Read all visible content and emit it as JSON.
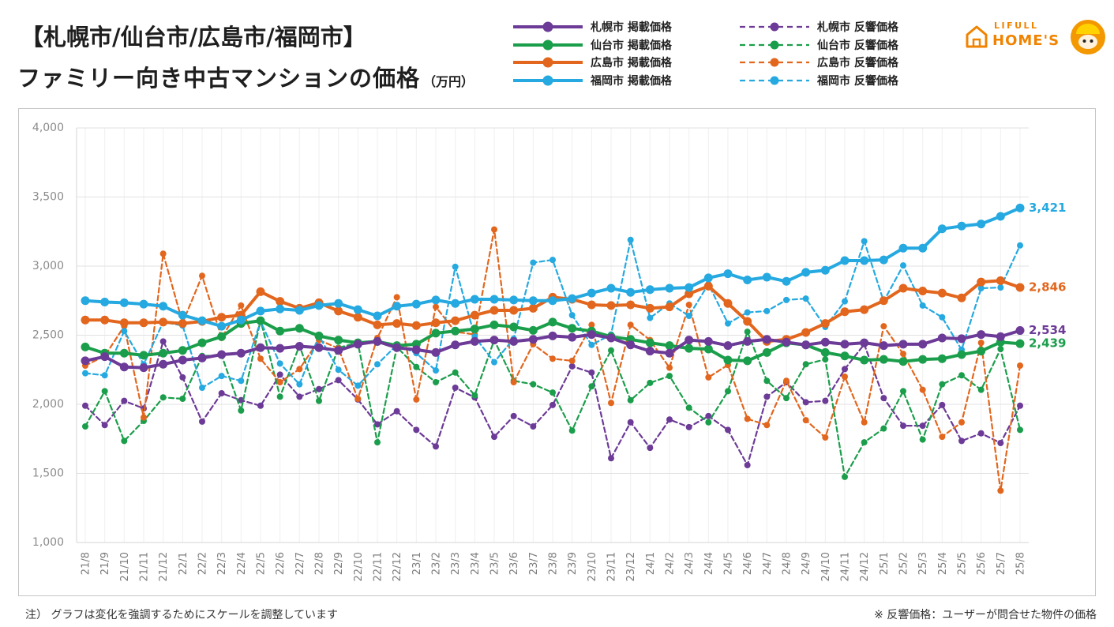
{
  "logo": {
    "line1": "LIFULL",
    "line2": "HOME'S"
  },
  "footer": {
    "left": "注） グラフは変化を強調するためにスケールを調整しています",
    "right": "※ 反響価格：ユーザーが問合せた物件の価格"
  },
  "chart_data": {
    "type": "line",
    "title": "【札幌市/仙台市/広島市/福岡市】",
    "subtitle": "ファミリー向き中古マンションの価格",
    "unit": "（万円）",
    "legend": "top-right",
    "grid": true,
    "ylim": [
      1000,
      4000
    ],
    "yticks": [
      1000,
      1500,
      2000,
      2500,
      3000,
      3500,
      4000
    ],
    "ytick_labels": [
      "1,000",
      "1,500",
      "2,000",
      "2,500",
      "3,000",
      "3,500",
      "4,000"
    ],
    "categories": [
      "21/8",
      "21/9",
      "21/10",
      "21/11",
      "21/12",
      "22/1",
      "22/2",
      "22/3",
      "22/4",
      "22/5",
      "22/6",
      "22/7",
      "22/8",
      "22/9",
      "22/10",
      "22/11",
      "22/12",
      "23/1",
      "23/2",
      "23/3",
      "23/4",
      "23/5",
      "23/6",
      "23/7",
      "23/8",
      "23/9",
      "23/10",
      "23/11",
      "23/12",
      "24/1",
      "24/2",
      "24/3",
      "24/4",
      "24/5",
      "24/6",
      "24/7",
      "24/8",
      "24/9",
      "24/10",
      "24/11",
      "24/12",
      "25/1",
      "25/2",
      "25/3",
      "25/4",
      "25/5",
      "25/6",
      "25/7",
      "25/8"
    ],
    "series": [
      {
        "name": "札幌市 掲載価格",
        "color": "#6c3a97",
        "line_style": "solid",
        "end_label": "2,534",
        "values": [
          2315,
          2345,
          2270,
          2265,
          2290,
          2320,
          2335,
          2360,
          2370,
          2410,
          2405,
          2420,
          2410,
          2390,
          2435,
          2455,
          2410,
          2395,
          2375,
          2430,
          2455,
          2465,
          2455,
          2470,
          2495,
          2485,
          2505,
          2480,
          2430,
          2385,
          2370,
          2465,
          2455,
          2425,
          2455,
          2470,
          2450,
          2430,
          2450,
          2435,
          2445,
          2425,
          2435,
          2435,
          2480,
          2475,
          2505,
          2490,
          2534
        ]
      },
      {
        "name": "仙台市 掲載価格",
        "color": "#1b9e4b",
        "line_style": "solid",
        "end_label": "2,439",
        "values": [
          2415,
          2370,
          2370,
          2355,
          2370,
          2390,
          2445,
          2490,
          2585,
          2605,
          2530,
          2550,
          2495,
          2465,
          2445,
          2455,
          2425,
          2435,
          2515,
          2530,
          2545,
          2575,
          2560,
          2535,
          2595,
          2550,
          2530,
          2490,
          2470,
          2445,
          2425,
          2405,
          2400,
          2320,
          2315,
          2375,
          2445,
          2430,
          2375,
          2350,
          2320,
          2325,
          2310,
          2325,
          2330,
          2360,
          2385,
          2450,
          2439
        ]
      },
      {
        "name": "広島市 掲載価格",
        "color": "#e2661d",
        "line_style": "solid",
        "end_label": "2,846",
        "values": [
          2610,
          2610,
          2590,
          2590,
          2595,
          2585,
          2600,
          2630,
          2645,
          2815,
          2745,
          2695,
          2735,
          2675,
          2630,
          2575,
          2585,
          2570,
          2590,
          2605,
          2645,
          2680,
          2680,
          2695,
          2775,
          2760,
          2720,
          2715,
          2720,
          2695,
          2705,
          2800,
          2855,
          2730,
          2600,
          2455,
          2470,
          2520,
          2585,
          2670,
          2685,
          2750,
          2840,
          2820,
          2805,
          2770,
          2885,
          2895,
          2846
        ]
      },
      {
        "name": "福岡市 掲載価格",
        "color": "#25a9e0",
        "line_style": "solid",
        "end_label": "3,421",
        "values": [
          2750,
          2740,
          2735,
          2725,
          2710,
          2645,
          2605,
          2565,
          2610,
          2675,
          2690,
          2680,
          2715,
          2730,
          2685,
          2640,
          2710,
          2725,
          2755,
          2730,
          2760,
          2760,
          2755,
          2750,
          2750,
          2765,
          2805,
          2840,
          2810,
          2830,
          2840,
          2845,
          2915,
          2945,
          2900,
          2920,
          2890,
          2955,
          2970,
          3040,
          3040,
          3045,
          3130,
          3130,
          3270,
          3290,
          3305,
          3360,
          3421
        ]
      },
      {
        "name": "札幌市 反響価格",
        "color": "#6c3a97",
        "line_style": "dashed",
        "values": [
          1990,
          1850,
          2025,
          1970,
          2455,
          2195,
          1875,
          2080,
          2030,
          1990,
          2215,
          2055,
          2110,
          2175,
          2035,
          1855,
          1950,
          1815,
          1695,
          2120,
          2050,
          1765,
          1915,
          1840,
          1995,
          2275,
          2230,
          1610,
          1870,
          1685,
          1890,
          1835,
          1915,
          1815,
          1560,
          2055,
          2160,
          2015,
          2025,
          2255,
          2435,
          2045,
          1845,
          1845,
          1995,
          1735,
          1790,
          1720,
          1990
        ]
      },
      {
        "name": "仙台市 反響価格",
        "color": "#1b9e4b",
        "line_style": "dashed",
        "values": [
          1840,
          2095,
          1735,
          1880,
          2050,
          2040,
          2350,
          2355,
          1955,
          2610,
          2055,
          2425,
          2025,
          2410,
          2445,
          1725,
          2415,
          2270,
          2160,
          2230,
          2065,
          2465,
          2170,
          2145,
          2085,
          1810,
          2130,
          2390,
          2030,
          2155,
          2205,
          1975,
          1870,
          2095,
          2525,
          2170,
          2045,
          2290,
          2325,
          1475,
          1725,
          1825,
          2095,
          1745,
          2145,
          2210,
          2105,
          2400,
          1815
        ]
      },
      {
        "name": "広島市 反響価格",
        "color": "#e2661d",
        "line_style": "dashed",
        "values": [
          2280,
          2350,
          2565,
          1905,
          3090,
          2590,
          2930,
          2480,
          2715,
          2330,
          2160,
          2255,
          2465,
          2405,
          2040,
          2480,
          2775,
          2035,
          2705,
          2525,
          2505,
          3265,
          2160,
          2435,
          2330,
          2315,
          2575,
          2010,
          2575,
          2465,
          2265,
          2720,
          2195,
          2285,
          1895,
          1850,
          2170,
          1885,
          1760,
          2200,
          1870,
          2565,
          2365,
          2105,
          1765,
          1870,
          2445,
          1375,
          2280
        ]
      },
      {
        "name": "福岡市 反響価格",
        "color": "#25a9e0",
        "line_style": "dashed",
        "values": [
          2225,
          2210,
          2530,
          2290,
          2595,
          2570,
          2120,
          2205,
          2170,
          2600,
          2295,
          2145,
          2495,
          2250,
          2135,
          2290,
          2430,
          2370,
          2245,
          2995,
          2490,
          2305,
          2475,
          3025,
          3045,
          2645,
          2430,
          2505,
          3190,
          2625,
          2730,
          2640,
          2870,
          2585,
          2665,
          2675,
          2755,
          2765,
          2560,
          2745,
          3180,
          2745,
          3005,
          2715,
          2630,
          2395,
          2840,
          2845,
          3150
        ]
      }
    ]
  }
}
